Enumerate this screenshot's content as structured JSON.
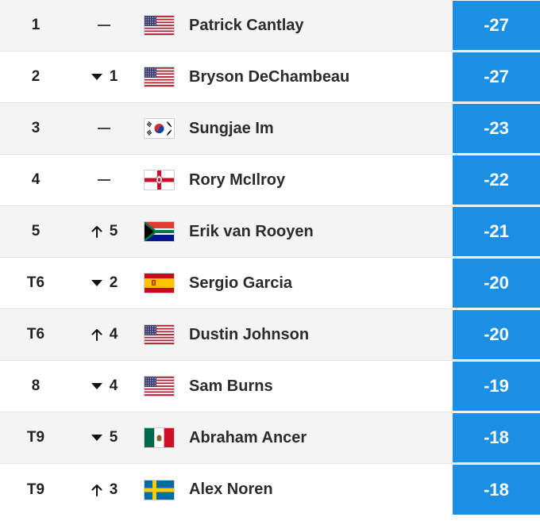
{
  "colors": {
    "score_bg": "#1a8fe3",
    "row_alt": "#f4f4f4",
    "row_plain": "#ffffff",
    "text": "#222222"
  },
  "rows": [
    {
      "pos": "1",
      "move_dir": "none",
      "move_amt": "",
      "flag": "usa",
      "name": "Patrick Cantlay",
      "score": "-27"
    },
    {
      "pos": "2",
      "move_dir": "down",
      "move_amt": "1",
      "flag": "usa",
      "name": "Bryson DeChambeau",
      "score": "-27"
    },
    {
      "pos": "3",
      "move_dir": "none",
      "move_amt": "",
      "flag": "south-korea",
      "name": "Sungjae Im",
      "score": "-23"
    },
    {
      "pos": "4",
      "move_dir": "none",
      "move_amt": "",
      "flag": "northern-ireland",
      "name": "Rory McIlroy",
      "score": "-22"
    },
    {
      "pos": "5",
      "move_dir": "up",
      "move_amt": "5",
      "flag": "south-africa",
      "name": "Erik van Rooyen",
      "score": "-21"
    },
    {
      "pos": "T6",
      "move_dir": "down",
      "move_amt": "2",
      "flag": "spain",
      "name": "Sergio Garcia",
      "score": "-20"
    },
    {
      "pos": "T6",
      "move_dir": "up",
      "move_amt": "4",
      "flag": "usa",
      "name": "Dustin Johnson",
      "score": "-20"
    },
    {
      "pos": "8",
      "move_dir": "down",
      "move_amt": "4",
      "flag": "usa",
      "name": "Sam Burns",
      "score": "-19"
    },
    {
      "pos": "T9",
      "move_dir": "down",
      "move_amt": "5",
      "flag": "mexico",
      "name": "Abraham Ancer",
      "score": "-18"
    },
    {
      "pos": "T9",
      "move_dir": "up",
      "move_amt": "3",
      "flag": "sweden",
      "name": "Alex Noren",
      "score": "-18"
    }
  ]
}
